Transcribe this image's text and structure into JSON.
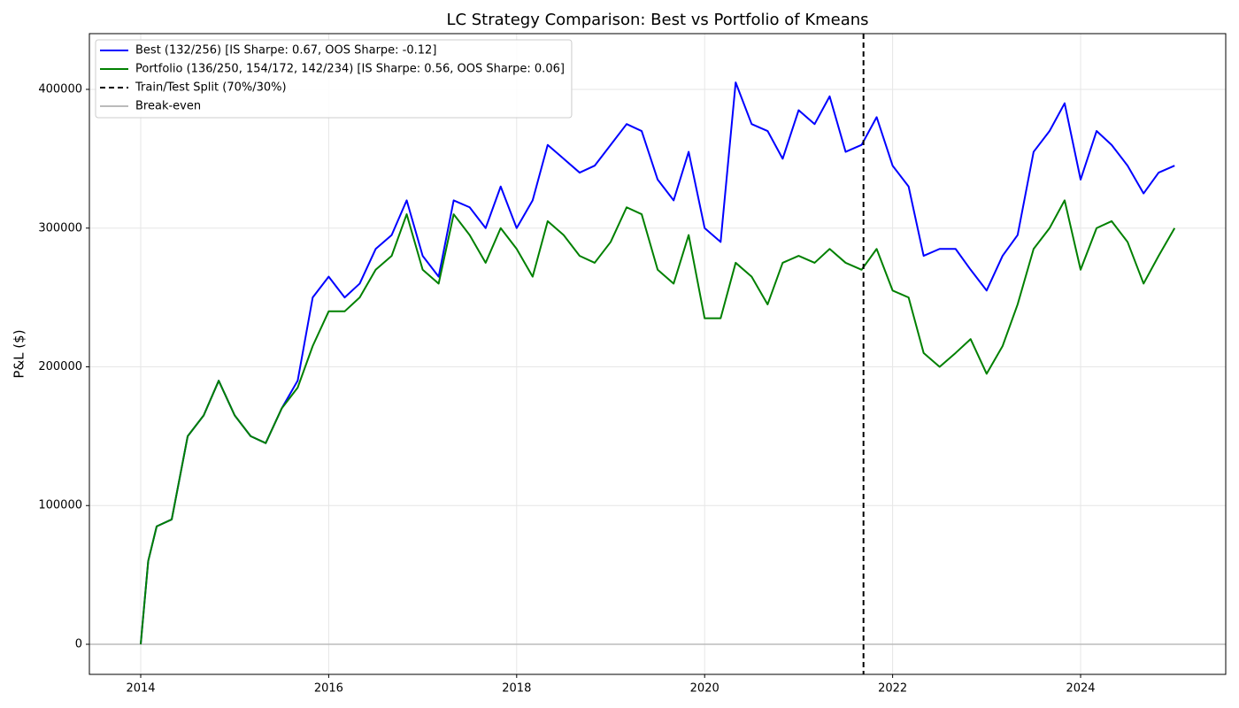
{
  "chart_data": {
    "type": "line",
    "title": "LC Strategy Comparison: Best vs Portfolio of Kmeans",
    "y_label": "P&L ($)",
    "x": [
      2014,
      2014.08,
      2014.17,
      2014.33,
      2014.5,
      2014.67,
      2014.83,
      2015,
      2015.17,
      2015.33,
      2015.5,
      2015.67,
      2015.83,
      2016,
      2016.17,
      2016.33,
      2016.5,
      2016.67,
      2016.83,
      2017,
      2017.17,
      2017.33,
      2017.5,
      2017.67,
      2017.83,
      2018,
      2018.17,
      2018.33,
      2018.5,
      2018.67,
      2018.83,
      2019,
      2019.17,
      2019.33,
      2019.5,
      2019.67,
      2019.83,
      2020,
      2020.17,
      2020.33,
      2020.5,
      2020.67,
      2020.83,
      2021,
      2021.17,
      2021.33,
      2021.5,
      2021.67,
      2021.83,
      2022,
      2022.17,
      2022.33,
      2022.5,
      2022.67,
      2022.83,
      2023,
      2023.17,
      2023.33,
      2023.5,
      2023.67,
      2023.83,
      2024,
      2024.17,
      2024.33,
      2024.5,
      2024.67,
      2024.83,
      2025
    ],
    "series": [
      {
        "name": "Best (132/256) [IS Sharpe: 0.67, OOS Sharpe: -0.12]",
        "color": "#0000ff",
        "values": [
          0,
          60000,
          85000,
          90000,
          150000,
          165000,
          190000,
          165000,
          150000,
          145000,
          170000,
          190000,
          250000,
          265000,
          250000,
          260000,
          285000,
          295000,
          320000,
          280000,
          265000,
          320000,
          315000,
          300000,
          330000,
          300000,
          320000,
          360000,
          350000,
          340000,
          345000,
          360000,
          375000,
          370000,
          335000,
          320000,
          355000,
          300000,
          290000,
          405000,
          375000,
          370000,
          350000,
          385000,
          375000,
          395000,
          355000,
          360000,
          380000,
          345000,
          330000,
          280000,
          285000,
          285000,
          270000,
          255000,
          280000,
          295000,
          355000,
          370000,
          390000,
          335000,
          370000,
          360000,
          345000,
          325000,
          340000,
          345000
        ]
      },
      {
        "name": "Portfolio (136/250, 154/172, 142/234) [IS Sharpe: 0.56, OOS Sharpe: 0.06]",
        "color": "#008000",
        "values": [
          0,
          60000,
          85000,
          90000,
          150000,
          165000,
          190000,
          165000,
          150000,
          145000,
          170000,
          185000,
          215000,
          240000,
          240000,
          250000,
          270000,
          280000,
          310000,
          270000,
          260000,
          310000,
          295000,
          275000,
          300000,
          285000,
          265000,
          305000,
          295000,
          280000,
          275000,
          290000,
          315000,
          310000,
          270000,
          260000,
          295000,
          235000,
          235000,
          275000,
          265000,
          245000,
          275000,
          280000,
          275000,
          285000,
          275000,
          270000,
          285000,
          255000,
          250000,
          210000,
          200000,
          210000,
          220000,
          195000,
          215000,
          245000,
          285000,
          300000,
          320000,
          270000,
          300000,
          305000,
          290000,
          260000,
          280000,
          300000
        ]
      }
    ],
    "split": {
      "name": "Train/Test Split (70%/30%)",
      "x": 2021.69,
      "color": "#000000"
    },
    "baseline": {
      "name": "Break-even",
      "y": 0,
      "color": "#bbbbbb"
    },
    "xlim": [
      2013.454,
      2025.544
    ],
    "xticks": [
      2014,
      2016,
      2018,
      2020,
      2022,
      2024
    ],
    "ylim": [
      -21700,
      440200
    ],
    "yticks": [
      0,
      100000,
      200000,
      300000,
      400000
    ],
    "grid": true,
    "legend": "upper-left"
  }
}
